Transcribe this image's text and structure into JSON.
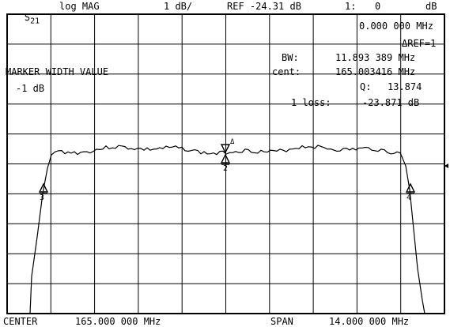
{
  "header": {
    "param": "S",
    "param_sub": "21",
    "format": "log MAG",
    "scale": "1 dB/",
    "ref": "REF -24.31 dB",
    "marker_id": "1:",
    "marker_value": "0",
    "marker_unit": "dB"
  },
  "readout": {
    "marker_freq": "0.000 000 MHz",
    "delta_ref": "ΔREF=1",
    "bw_label": "BW:",
    "bw_value": "11.893 389 MHz",
    "cent_label": "cent:",
    "cent_value": "165.003416 MHz",
    "q_label": "Q:",
    "q_value": "13.874",
    "loss_label": "1 loss:",
    "loss_value": "-23.871 dB"
  },
  "marker_width": {
    "title": "MARKER WIDTH VALUE",
    "value": "-1 dB"
  },
  "footer": {
    "center_label": "CENTER",
    "center_value": "165.000 000 MHz",
    "span_label": "SPAN",
    "span_value": "14.000 000 MHz"
  },
  "marker_labels": {
    "left": "3",
    "center": "2",
    "right": "4",
    "delta": "Δ"
  },
  "colors": {
    "background": "#ffffff",
    "grid": "#000000",
    "trace": "#000000"
  }
}
